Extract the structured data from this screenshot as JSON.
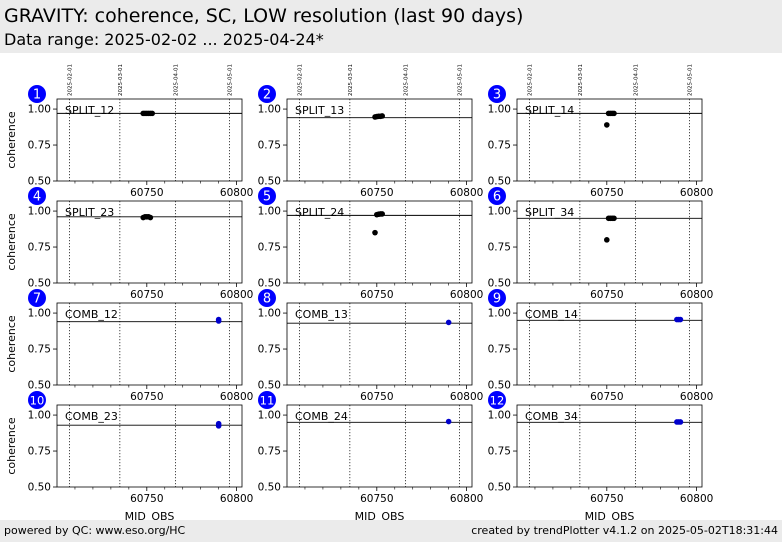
{
  "header": {
    "title": "GRAVITY: coherence, SC, LOW resolution (last 90 days)",
    "subtitle": "Data range: 2025-02-02 ... 2025-04-24*"
  },
  "footer": {
    "left": "powered by QC: www.eso.org/HC",
    "right": "created by trendPlotter v4.1.2 on 2025-05-02T18:31:44"
  },
  "colors": {
    "split_points": "#000000",
    "comb_points": "#0000cc",
    "badge": "#0000ff",
    "header_bg": "#ebebeb"
  },
  "chart_data": {
    "type": "scatter",
    "xlabel": "MJD_OBS",
    "ylabel": "coherence",
    "xlim": [
      60700,
      60803
    ],
    "ylim": [
      0.5,
      1.07
    ],
    "x_ticks": [
      60750,
      60800
    ],
    "y_ticks": [
      "0.50",
      "0.75",
      "1.00"
    ],
    "date_markers": [
      {
        "label": "2025-02-01",
        "mjd": 60707
      },
      {
        "label": "2025-03-01",
        "mjd": 60735
      },
      {
        "label": "2025-04-01",
        "mjd": 60766
      },
      {
        "label": "2025-05-01",
        "mjd": 60796
      }
    ],
    "panels": [
      {
        "num": "1",
        "label": "SPLIT_12",
        "kind": "split",
        "reference": 0.97,
        "points": [
          [
            60748,
            0.97
          ],
          [
            60749,
            0.97
          ],
          [
            60750,
            0.97
          ],
          [
            60751,
            0.97
          ],
          [
            60752,
            0.97
          ],
          [
            60753,
            0.97
          ]
        ]
      },
      {
        "num": "2",
        "label": "SPLIT_13",
        "kind": "split",
        "reference": 0.94,
        "points": [
          [
            60749,
            0.945
          ],
          [
            60750,
            0.948
          ],
          [
            60751,
            0.95
          ],
          [
            60752,
            0.95
          ],
          [
            60753,
            0.952
          ]
        ]
      },
      {
        "num": "3",
        "label": "SPLIT_14",
        "kind": "split",
        "reference": 0.97,
        "points": [
          [
            60750,
            0.89
          ],
          [
            60751,
            0.97
          ],
          [
            60752,
            0.97
          ],
          [
            60753,
            0.97
          ],
          [
            60754,
            0.97
          ]
        ]
      },
      {
        "num": "4",
        "label": "SPLIT_23",
        "kind": "split",
        "reference": 0.96,
        "points": [
          [
            60748,
            0.955
          ],
          [
            60749,
            0.96
          ],
          [
            60750,
            0.96
          ],
          [
            60751,
            0.96
          ],
          [
            60752,
            0.955
          ]
        ]
      },
      {
        "num": "5",
        "label": "SPLIT_24",
        "kind": "split",
        "reference": 0.97,
        "points": [
          [
            60749,
            0.85
          ],
          [
            60750,
            0.975
          ],
          [
            60751,
            0.978
          ],
          [
            60752,
            0.98
          ],
          [
            60753,
            0.98
          ]
        ]
      },
      {
        "num": "6",
        "label": "SPLIT_34",
        "kind": "split",
        "reference": 0.95,
        "points": [
          [
            60750,
            0.8
          ],
          [
            60751,
            0.95
          ],
          [
            60752,
            0.95
          ],
          [
            60753,
            0.95
          ],
          [
            60754,
            0.95
          ]
        ]
      },
      {
        "num": "7",
        "label": "COMB_12",
        "kind": "comb",
        "reference": 0.94,
        "points": [
          [
            60790,
            0.945
          ],
          [
            60790,
            0.955
          ]
        ]
      },
      {
        "num": "8",
        "label": "COMB_13",
        "kind": "comb",
        "reference": 0.93,
        "points": [
          [
            60790,
            0.935
          ]
        ]
      },
      {
        "num": "9",
        "label": "COMB_14",
        "kind": "comb",
        "reference": 0.95,
        "points": [
          [
            60789,
            0.955
          ],
          [
            60790,
            0.955
          ],
          [
            60791,
            0.955
          ]
        ]
      },
      {
        "num": "10",
        "label": "COMB_23",
        "kind": "comb",
        "reference": 0.93,
        "points": [
          [
            60790,
            0.925
          ],
          [
            60790,
            0.94
          ]
        ]
      },
      {
        "num": "11",
        "label": "COMB_24",
        "kind": "comb",
        "reference": 0.95,
        "points": [
          [
            60790,
            0.955
          ]
        ]
      },
      {
        "num": "12",
        "label": "COMB_34",
        "kind": "comb",
        "reference": 0.95,
        "points": [
          [
            60789,
            0.952
          ],
          [
            60790,
            0.952
          ],
          [
            60791,
            0.952
          ]
        ]
      }
    ]
  }
}
